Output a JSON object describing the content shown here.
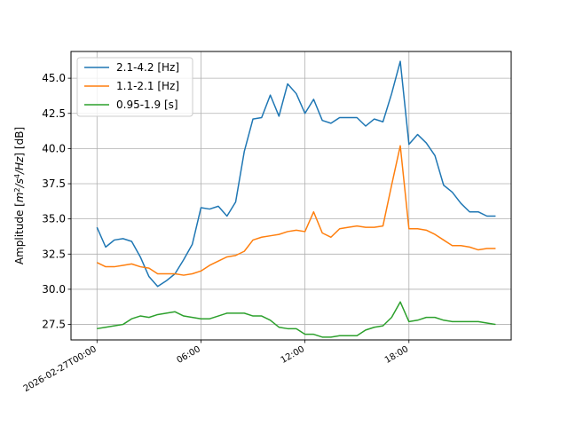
{
  "chart_data": {
    "type": "line",
    "ylabel_prefix": "Amplitude [",
    "ylabel_suffix": "] [dB]",
    "ylabel_unit_base_m": "m",
    "ylabel_unit_exp_m": "2",
    "ylabel_unit_sep": "/s",
    "ylabel_unit_exp_s": "4",
    "ylabel_unit_tail": "/Hz",
    "xlabel": "",
    "title": "",
    "grid": true,
    "legend_position": "upper-left",
    "xlim_hours": [
      -1.5,
      23.9
    ],
    "ylim": [
      26.4,
      46.9
    ],
    "xticks": [
      {
        "hour": 0,
        "label": "2026-02-27T00:00"
      },
      {
        "hour": 6,
        "label": "06:00"
      },
      {
        "hour": 12,
        "label": "12:00"
      },
      {
        "hour": 18,
        "label": "18:00"
      }
    ],
    "yticks": [
      {
        "value": 27.5,
        "label": "27.5"
      },
      {
        "value": 30.0,
        "label": "30.0"
      },
      {
        "value": 32.5,
        "label": "32.5"
      },
      {
        "value": 35.0,
        "label": "35.0"
      },
      {
        "value": 37.5,
        "label": "37.5"
      },
      {
        "value": 40.0,
        "label": "40.0"
      },
      {
        "value": 42.5,
        "label": "42.5"
      },
      {
        "value": 45.0,
        "label": "45.0"
      }
    ],
    "series": [
      {
        "name": "2.1-4.2 [Hz]",
        "color": "#1f77b4",
        "x": [
          0,
          0.5,
          1,
          1.5,
          2,
          2.5,
          3,
          3.5,
          4,
          4.5,
          5,
          5.5,
          6,
          6.5,
          7,
          7.5,
          8,
          8.5,
          9,
          9.5,
          10,
          10.5,
          11,
          11.5,
          12,
          12.5,
          13,
          13.5,
          14,
          14.5,
          15,
          15.5,
          16,
          16.5,
          17,
          17.5,
          18,
          18.5,
          19,
          19.5,
          20,
          20.5,
          21,
          21.5,
          22,
          22.5,
          23
        ],
        "values": [
          34.4,
          33.0,
          33.5,
          33.6,
          33.4,
          32.3,
          30.9,
          30.2,
          30.6,
          31.1,
          32.1,
          33.2,
          35.8,
          35.7,
          35.9,
          35.2,
          36.2,
          39.8,
          42.1,
          42.2,
          43.8,
          42.3,
          44.6,
          43.9,
          42.5,
          43.5,
          42.0,
          41.8,
          42.2,
          42.2,
          42.2,
          41.6,
          42.1,
          41.9,
          43.9,
          46.2,
          40.3,
          41.0,
          40.4,
          39.5,
          37.4,
          36.9,
          36.1,
          35.5,
          35.5,
          35.2,
          35.2
        ]
      },
      {
        "name": "1.1-2.1 [Hz]",
        "color": "#ff7f0e",
        "x": [
          0,
          0.5,
          1,
          1.5,
          2,
          2.5,
          3,
          3.5,
          4,
          4.5,
          5,
          5.5,
          6,
          6.5,
          7,
          7.5,
          8,
          8.5,
          9,
          9.5,
          10,
          10.5,
          11,
          11.5,
          12,
          12.5,
          13,
          13.5,
          14,
          14.5,
          15,
          15.5,
          16,
          16.5,
          17,
          17.5,
          18,
          18.5,
          19,
          19.5,
          20,
          20.5,
          21,
          21.5,
          22,
          22.5,
          23
        ],
        "values": [
          31.9,
          31.6,
          31.6,
          31.7,
          31.8,
          31.6,
          31.5,
          31.1,
          31.1,
          31.1,
          31.0,
          31.1,
          31.3,
          31.7,
          32.0,
          32.3,
          32.4,
          32.7,
          33.5,
          33.7,
          33.8,
          33.9,
          34.1,
          34.2,
          34.1,
          35.5,
          34.0,
          33.7,
          34.3,
          34.4,
          34.5,
          34.4,
          34.4,
          34.5,
          37.4,
          40.2,
          34.3,
          34.3,
          34.2,
          33.9,
          33.5,
          33.1,
          33.1,
          33.0,
          32.8,
          32.9,
          32.9
        ]
      },
      {
        "name": "0.95-1.9 [s]",
        "color": "#2ca02c",
        "x": [
          0,
          0.5,
          1,
          1.5,
          2,
          2.5,
          3,
          3.5,
          4,
          4.5,
          5,
          5.5,
          6,
          6.5,
          7,
          7.5,
          8,
          8.5,
          9,
          9.5,
          10,
          10.5,
          11,
          11.5,
          12,
          12.5,
          13,
          13.5,
          14,
          14.5,
          15,
          15.5,
          16,
          16.5,
          17,
          17.5,
          18,
          18.5,
          19,
          19.5,
          20,
          20.5,
          21,
          21.5,
          22,
          22.5,
          23
        ],
        "values": [
          27.2,
          27.3,
          27.4,
          27.5,
          27.9,
          28.1,
          28.0,
          28.2,
          28.3,
          28.4,
          28.1,
          28.0,
          27.9,
          27.9,
          28.1,
          28.3,
          28.3,
          28.3,
          28.1,
          28.1,
          27.8,
          27.3,
          27.2,
          27.2,
          26.8,
          26.8,
          26.6,
          26.6,
          26.7,
          26.7,
          26.7,
          27.1,
          27.3,
          27.4,
          28.0,
          29.1,
          27.7,
          27.8,
          28.0,
          28.0,
          27.8,
          27.7,
          27.7,
          27.7,
          27.7,
          27.6,
          27.5
        ]
      }
    ]
  }
}
